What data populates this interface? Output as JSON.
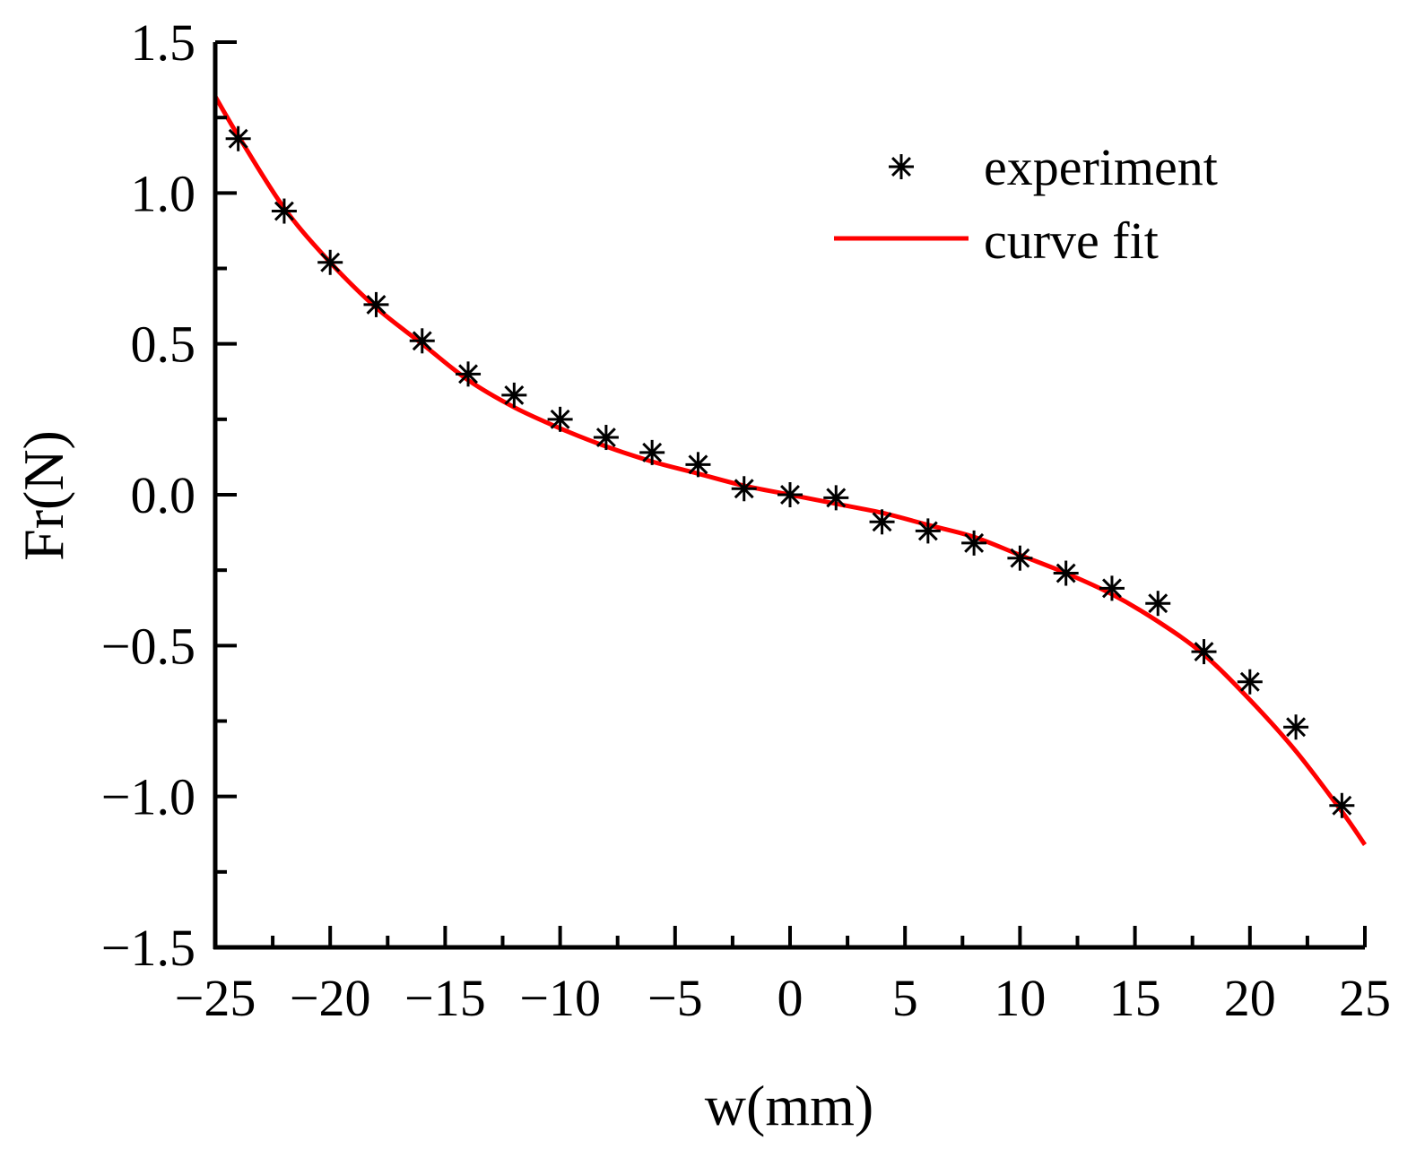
{
  "chart_data": {
    "type": "scatter",
    "title": "",
    "xlabel": "w(mm)",
    "ylabel": "Fr(N)",
    "xlim": [
      -25,
      25
    ],
    "ylim": [
      -1.5,
      1.5
    ],
    "xticks": [
      -25,
      -20,
      -15,
      -10,
      -5,
      0,
      5,
      10,
      15,
      20,
      25
    ],
    "xtick_labels": [
      "−25",
      "−20",
      "−15",
      "−10",
      "−5",
      "0",
      "5",
      "10",
      "15",
      "20",
      "25"
    ],
    "yticks": [
      -1.5,
      -1.0,
      -0.5,
      0.0,
      0.5,
      1.0,
      1.5
    ],
    "ytick_labels": [
      "−1.5",
      "−1.0",
      "−0.5",
      "0.0",
      "0.5",
      "1.0",
      "1.5"
    ],
    "grid": false,
    "legend_position": "top-right",
    "series": [
      {
        "name": "experiment",
        "kind": "scatter",
        "marker": "asterisk",
        "color": "#000000",
        "x": [
          -24,
          -22,
          -20,
          -18,
          -16,
          -14,
          -12,
          -10,
          -8,
          -6,
          -4,
          -2,
          0,
          2,
          4,
          6,
          8,
          10,
          12,
          14,
          16,
          18,
          20,
          22,
          24
        ],
        "y": [
          1.18,
          0.94,
          0.77,
          0.63,
          0.51,
          0.4,
          0.33,
          0.25,
          0.19,
          0.14,
          0.1,
          0.02,
          0.0,
          -0.01,
          -0.09,
          -0.12,
          -0.16,
          -0.21,
          -0.26,
          -0.31,
          -0.36,
          -0.52,
          -0.62,
          -0.77,
          -1.03
        ]
      },
      {
        "name": "curve fit",
        "kind": "line",
        "color": "#ff0000",
        "x": [
          -25,
          -24,
          -22,
          -20,
          -18,
          -16,
          -14,
          -12,
          -10,
          -8,
          -6,
          -4,
          -2,
          0,
          2,
          4,
          6,
          8,
          10,
          12,
          14,
          16,
          18,
          20,
          22,
          24,
          25
        ],
        "y": [
          1.32,
          1.19,
          0.95,
          0.77,
          0.62,
          0.5,
          0.38,
          0.29,
          0.22,
          0.16,
          0.11,
          0.07,
          0.03,
          0.0,
          -0.03,
          -0.06,
          -0.1,
          -0.14,
          -0.2,
          -0.26,
          -0.33,
          -0.42,
          -0.53,
          -0.68,
          -0.85,
          -1.05,
          -1.16
        ]
      }
    ]
  }
}
